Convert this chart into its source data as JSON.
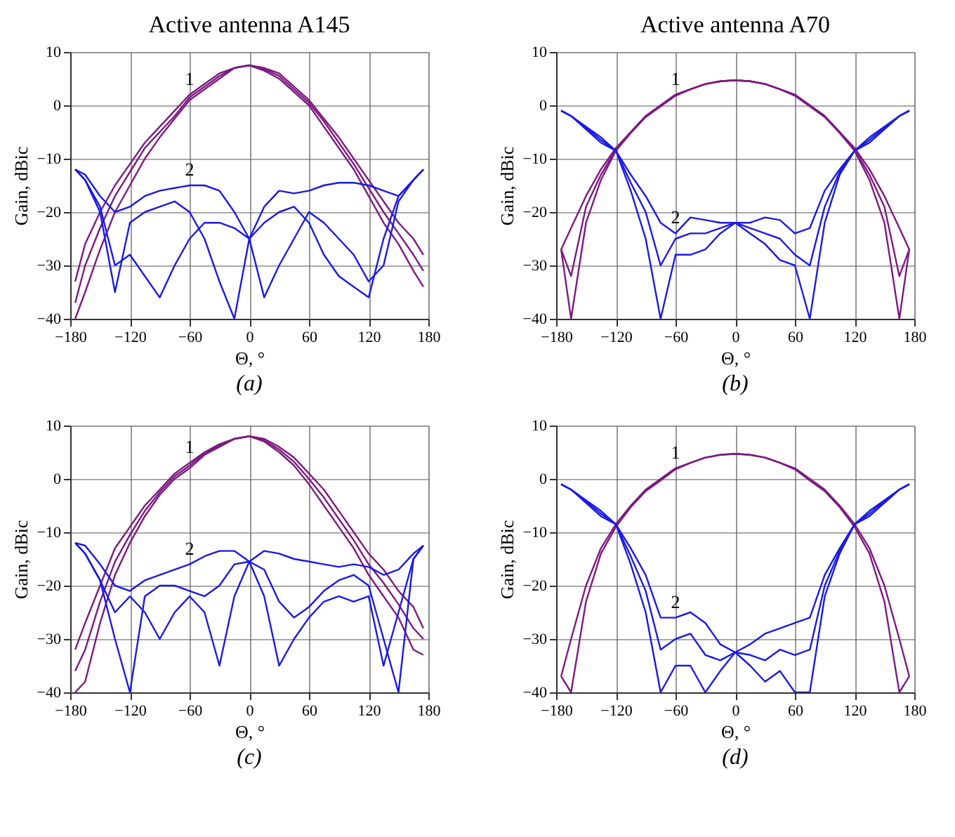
{
  "chart_data": [
    {
      "type": "line",
      "title": "Active antenna A145",
      "xlabel": "Θ, °",
      "ylabel": "Gain, dBic",
      "xlim": [
        -180,
        180
      ],
      "xticks": [
        -180,
        -120,
        -60,
        0,
        60,
        120,
        180
      ],
      "ylim": [
        -40,
        10
      ],
      "yticks": [
        -40,
        -30,
        -20,
        -10,
        0,
        10
      ],
      "grid": true,
      "line_style": "solid",
      "x": [
        -175,
        -165,
        -150,
        -135,
        -120,
        -105,
        -90,
        -75,
        -60,
        -45,
        -30,
        -15,
        0,
        15,
        30,
        45,
        60,
        75,
        90,
        105,
        120,
        135,
        150,
        165,
        175
      ],
      "series": [
        {
          "color": "#7d1a80",
          "values": [
            -33,
            -26,
            -20,
            -15,
            -11,
            -7,
            -4,
            -1,
            2,
            4,
            6,
            7,
            7.5,
            7,
            6,
            3.5,
            1,
            -2.5,
            -6,
            -10,
            -14,
            -18,
            -22,
            -25,
            -28
          ]
        },
        {
          "color": "#7d1a80",
          "values": [
            -37,
            -30,
            -23,
            -17,
            -12.5,
            -8,
            -5,
            -2,
            1.5,
            3.5,
            5.5,
            7,
            7.5,
            6.8,
            5.5,
            3,
            0.5,
            -3,
            -7,
            -11,
            -15.5,
            -20,
            -24,
            -28,
            -31
          ]
        },
        {
          "color": "#7d1a80",
          "values": [
            -40,
            -35,
            -27,
            -20,
            -15,
            -10,
            -6,
            -2.5,
            1,
            3,
            5,
            7,
            7.5,
            6.5,
            5,
            2.5,
            0,
            -4,
            -8,
            -12,
            -17,
            -22,
            -26,
            -31,
            -34
          ]
        },
        {
          "color": "#1a1ae6",
          "values": [
            -12,
            -13,
            -17,
            -20,
            -19,
            -17,
            -16,
            -15.5,
            -15,
            -15,
            -16,
            -20,
            -25,
            -19,
            -16,
            -16.5,
            -16,
            -15,
            -14.5,
            -14.5,
            -15,
            -16,
            -17,
            -14,
            -12
          ]
        },
        {
          "color": "#1a1ae6",
          "values": [
            -12,
            -14,
            -20,
            -35,
            -22,
            -20,
            -19,
            -18,
            -20,
            -25,
            -33,
            -40,
            -25,
            -36,
            -30,
            -25,
            -20,
            -22,
            -25,
            -28,
            -33,
            -30,
            -18,
            -14,
            -12
          ]
        },
        {
          "color": "#1a1ae6",
          "values": [
            -12,
            -14,
            -19,
            -30,
            -28,
            -32,
            -36,
            -30,
            -25,
            -22,
            -22,
            -23,
            -25,
            -22,
            -20,
            -19,
            -22,
            -28,
            -32,
            -34,
            -36,
            -25,
            -17,
            -14,
            -12
          ]
        }
      ],
      "annotations": [
        "1",
        "2",
        "(a)"
      ]
    },
    {
      "type": "line",
      "title": "Active antenna A70",
      "xlabel": "Θ, °",
      "ylabel": "Gain, dBic",
      "xlim": [
        -180,
        180
      ],
      "xticks": [
        -180,
        -120,
        -60,
        0,
        60,
        120,
        180
      ],
      "ylim": [
        -40,
        10
      ],
      "yticks": [
        -40,
        -30,
        -20,
        -10,
        0,
        10
      ],
      "grid": true,
      "line_style": "solid",
      "x": [
        -175,
        -165,
        -150,
        -135,
        -120,
        -105,
        -90,
        -75,
        -60,
        -45,
        -30,
        -15,
        0,
        15,
        30,
        45,
        60,
        75,
        90,
        105,
        120,
        135,
        150,
        165,
        175
      ],
      "series": [
        {
          "color": "#7d1a80",
          "values": [
            -27,
            -23,
            -17,
            -12,
            -8,
            -5,
            -2,
            0,
            2,
            3,
            4,
            4.5,
            4.7,
            4.5,
            4,
            3,
            2,
            0,
            -2,
            -5,
            -8,
            -12,
            -17,
            -23,
            -27
          ]
        },
        {
          "color": "#7d1a80",
          "values": [
            -27,
            -32,
            -19,
            -13,
            -8.3,
            -5,
            -2,
            0,
            2,
            3,
            4,
            4.5,
            4.7,
            4.5,
            4,
            3,
            2,
            0,
            -2,
            -5,
            -8.3,
            -13,
            -19,
            -32,
            -27
          ]
        },
        {
          "color": "#7d1a80",
          "values": [
            -27,
            -40,
            -22,
            -14,
            -8.5,
            -5.2,
            -2.2,
            -0.2,
            1.8,
            3,
            4,
            4.5,
            4.7,
            4.5,
            4,
            3,
            1.8,
            -0.2,
            -2.2,
            -5.2,
            -8.5,
            -14,
            -22,
            -40,
            -27
          ]
        },
        {
          "color": "#1a1ae6",
          "values": [
            -1,
            -2,
            -4,
            -6,
            -8.5,
            -13,
            -17,
            -22,
            -24,
            -21,
            -21.5,
            -22,
            -22,
            -22,
            -21,
            -21.5,
            -24,
            -23,
            -16,
            -12,
            -8.5,
            -6,
            -4,
            -2,
            -1
          ]
        },
        {
          "color": "#1a1ae6",
          "values": [
            -1,
            -2,
            -4.2,
            -6.5,
            -8.5,
            -14.5,
            -20,
            -30,
            -25,
            -24,
            -24,
            -23,
            -22,
            -23,
            -24,
            -25,
            -28,
            -30,
            -19,
            -12.5,
            -8.5,
            -6.5,
            -4.2,
            -2,
            -1
          ]
        },
        {
          "color": "#1a1ae6",
          "values": [
            -1,
            -2,
            -4.5,
            -7,
            -8.5,
            -16,
            -25,
            -40,
            -28,
            -28,
            -27,
            -24,
            -22,
            -24,
            -26,
            -29,
            -30,
            -40,
            -22,
            -13,
            -8.5,
            -7,
            -4.5,
            -2,
            -1
          ]
        }
      ],
      "annotations": [
        "1",
        "2",
        "(b)"
      ]
    },
    {
      "type": "line",
      "xlabel": "Θ, °",
      "ylabel": "Gain, dBic",
      "xlim": [
        -180,
        180
      ],
      "xticks": [
        -180,
        -120,
        -60,
        0,
        60,
        120,
        180
      ],
      "ylim": [
        -40,
        10
      ],
      "yticks": [
        -40,
        -30,
        -20,
        -10,
        0,
        10
      ],
      "grid": true,
      "line_style": "solid",
      "x": [
        -175,
        -165,
        -150,
        -135,
        -120,
        -105,
        -90,
        -75,
        -60,
        -45,
        -30,
        -15,
        0,
        15,
        30,
        45,
        60,
        75,
        90,
        105,
        120,
        135,
        150,
        165,
        175
      ],
      "series": [
        {
          "color": "#7d1a80",
          "values": [
            -32,
            -27,
            -20,
            -13,
            -9,
            -5,
            -2,
            1,
            3,
            5,
            6.5,
            7.5,
            8,
            7.5,
            6,
            4,
            1,
            -2,
            -6,
            -10,
            -14,
            -17,
            -21,
            -24,
            -28
          ]
        },
        {
          "color": "#7d1a80",
          "values": [
            -36,
            -32,
            -23,
            -15.5,
            -10.5,
            -6,
            -2.5,
            0.5,
            2.5,
            4.8,
            6.2,
            7.5,
            8,
            7.2,
            5.5,
            3.2,
            0,
            -3.5,
            -7.5,
            -11.5,
            -16,
            -19.5,
            -23.5,
            -28,
            -30
          ]
        },
        {
          "color": "#7d1a80",
          "values": [
            -40,
            -38,
            -27,
            -18,
            -12,
            -7,
            -3,
            0,
            2,
            4.5,
            6,
            7.5,
            8,
            7,
            5,
            2.5,
            -1,
            -5,
            -9,
            -13,
            -18,
            -22,
            -26,
            -32,
            -33
          ]
        },
        {
          "color": "#1a1ae6",
          "values": [
            -12,
            -12.5,
            -16,
            -20,
            -21,
            -19,
            -18,
            -17,
            -16,
            -14.5,
            -13.5,
            -13.5,
            -15.5,
            -13.5,
            -14,
            -15,
            -15.5,
            -16,
            -16.5,
            -16,
            -16.5,
            -18,
            -17,
            -14,
            -12.5
          ]
        },
        {
          "color": "#1a1ae6",
          "values": [
            -12,
            -14,
            -19,
            -30,
            -40,
            -22,
            -20,
            -20,
            -21,
            -22,
            -20,
            -16,
            -15.5,
            -17,
            -23,
            -26,
            -24,
            -21,
            -19,
            -18,
            -20,
            -30,
            -40,
            -15,
            -12.5
          ]
        },
        {
          "color": "#1a1ae6",
          "values": [
            -12,
            -14,
            -19,
            -25,
            -22,
            -25,
            -30,
            -25,
            -22,
            -25,
            -35,
            -22,
            -15.5,
            -22,
            -35,
            -30,
            -26,
            -23,
            -22,
            -23,
            -22,
            -35,
            -25,
            -15,
            -12.5
          ]
        }
      ],
      "annotations": [
        "1",
        "2",
        "(c)"
      ]
    },
    {
      "type": "line",
      "xlabel": "Θ, °",
      "ylabel": "Gain, dBic",
      "xlim": [
        -180,
        180
      ],
      "xticks": [
        -180,
        -120,
        -60,
        0,
        60,
        120,
        180
      ],
      "ylim": [
        -40,
        10
      ],
      "yticks": [
        -40,
        -30,
        -20,
        -10,
        0,
        10
      ],
      "grid": true,
      "line_style": "solid",
      "x": [
        -175,
        -165,
        -150,
        -135,
        -120,
        -105,
        -90,
        -75,
        -60,
        -45,
        -30,
        -15,
        0,
        15,
        30,
        45,
        60,
        75,
        90,
        105,
        120,
        135,
        150,
        165,
        175
      ],
      "series": [
        {
          "color": "#7d1a80",
          "values": [
            -37,
            -30,
            -20,
            -13,
            -8.5,
            -5,
            -2,
            0,
            2,
            3,
            4,
            4.5,
            4.7,
            4.5,
            4,
            3,
            2,
            0,
            -2,
            -5,
            -8.5,
            -13,
            -20,
            -30,
            -37
          ]
        },
        {
          "color": "#7d1a80",
          "values": [
            -37,
            -40,
            -23,
            -14,
            -9,
            -5.3,
            -2.3,
            -0.3,
            1.8,
            3,
            4,
            4.5,
            4.7,
            4.5,
            4,
            3,
            1.8,
            -0.3,
            -2.3,
            -5.3,
            -9,
            -14,
            -23,
            -40,
            -37
          ]
        },
        {
          "color": "#1a1ae6",
          "values": [
            -1,
            -2,
            -4,
            -6,
            -8.5,
            -13,
            -18,
            -26,
            -26,
            -25,
            -27,
            -31,
            -32.5,
            -31,
            -29,
            -28,
            -27,
            -26,
            -18,
            -13,
            -8.5,
            -6,
            -4,
            -2,
            -1
          ]
        },
        {
          "color": "#1a1ae6",
          "values": [
            -1,
            -2,
            -4.2,
            -6.5,
            -8.5,
            -14.5,
            -21,
            -32,
            -30,
            -29,
            -33,
            -34,
            -32.5,
            -33,
            -34,
            -32,
            -33,
            -32,
            -20,
            -13.5,
            -8.5,
            -6.5,
            -4.2,
            -2,
            -1
          ]
        },
        {
          "color": "#1a1ae6",
          "values": [
            -1,
            -2,
            -4.5,
            -7,
            -8.5,
            -16,
            -25,
            -40,
            -35,
            -35,
            -40,
            -36,
            -32.5,
            -35,
            -38,
            -36,
            -40,
            -40,
            -22,
            -14,
            -8.5,
            -7,
            -4.5,
            -2,
            -1
          ]
        }
      ],
      "annotations": [
        "1",
        "2",
        "(d)"
      ]
    }
  ]
}
